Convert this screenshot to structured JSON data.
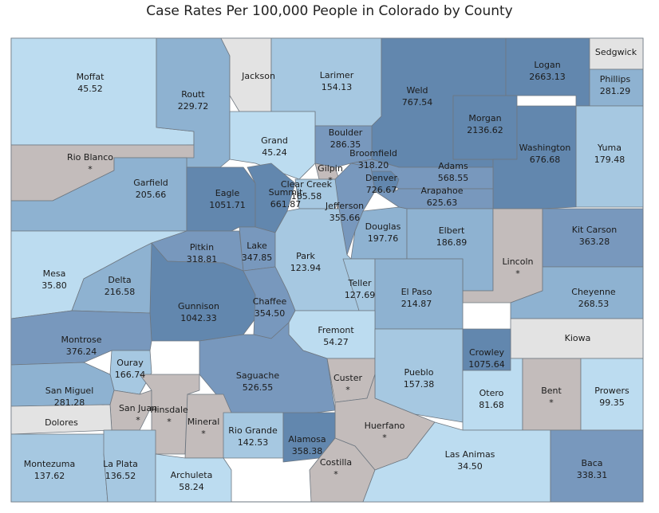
{
  "title": "Case Rates Per 100,000 People in Colorado by County",
  "colors": {
    "no_data": "#c3bcbb",
    "no_data_light": "#e3e3e3",
    "lightest": "#bcdcf0",
    "light": "#a6c8e1",
    "medium": "#8eb2d1",
    "dark": "#7898bd",
    "darkest": "#6287ae",
    "border": "#6e7780"
  },
  "counties": [
    {
      "key": "moffat",
      "name": "Moffat",
      "rate": "45.52",
      "shade": "lightest"
    },
    {
      "key": "routt",
      "name": "Routt",
      "rate": "229.72",
      "shade": "medium"
    },
    {
      "key": "jackson",
      "name": "Jackson",
      "rate": "",
      "shade": "no_data_light"
    },
    {
      "key": "larimer",
      "name": "Larimer",
      "rate": "154.13",
      "shade": "light"
    },
    {
      "key": "weld",
      "name": "Weld",
      "rate": "767.54",
      "shade": "darkest"
    },
    {
      "key": "logan",
      "name": "Logan",
      "rate": "2663.13",
      "shade": "darkest"
    },
    {
      "key": "sedgwick",
      "name": "Sedgwick",
      "rate": "",
      "shade": "no_data_light"
    },
    {
      "key": "phillips",
      "name": "Phillips",
      "rate": "281.29",
      "shade": "medium"
    },
    {
      "key": "morgan",
      "name": "Morgan",
      "rate": "2136.62",
      "shade": "darkest"
    },
    {
      "key": "yuma",
      "name": "Yuma",
      "rate": "179.48",
      "shade": "light"
    },
    {
      "key": "washington",
      "name": "Washington",
      "rate": "676.68",
      "shade": "darkest"
    },
    {
      "key": "rio-blanco",
      "name": "Rio Blanco",
      "rate": "*",
      "shade": "no_data"
    },
    {
      "key": "garfield",
      "name": "Garfield",
      "rate": "205.66",
      "shade": "medium"
    },
    {
      "key": "grand",
      "name": "Grand",
      "rate": "45.24",
      "shade": "lightest"
    },
    {
      "key": "boulder",
      "name": "Boulder",
      "rate": "286.35",
      "shade": "dark"
    },
    {
      "key": "broomfield",
      "name": "Broomfield",
      "rate": "318.20",
      "shade": "dark"
    },
    {
      "key": "gilpin",
      "name": "Gilpin",
      "rate": "*",
      "shade": "no_data"
    },
    {
      "key": "adams",
      "name": "Adams",
      "rate": "568.55",
      "shade": "dark"
    },
    {
      "key": "denver",
      "name": "Denver",
      "rate": "726.67",
      "shade": "darkest"
    },
    {
      "key": "arapahoe",
      "name": "Arapahoe",
      "rate": "625.63",
      "shade": "dark"
    },
    {
      "key": "eagle",
      "name": "Eagle",
      "rate": "1051.71",
      "shade": "darkest"
    },
    {
      "key": "summit",
      "name": "Summit",
      "rate": "661.87",
      "shade": "darkest"
    },
    {
      "key": "clear-creek",
      "name": "Clear Creek",
      "rate": "165.58",
      "shade": "light"
    },
    {
      "key": "jefferson",
      "name": "Jefferson",
      "rate": "355.66",
      "shade": "dark"
    },
    {
      "key": "douglas",
      "name": "Douglas",
      "rate": "197.76",
      "shade": "medium"
    },
    {
      "key": "elbert",
      "name": "Elbert",
      "rate": "186.89",
      "shade": "medium"
    },
    {
      "key": "lincoln",
      "name": "Lincoln",
      "rate": "*",
      "shade": "no_data"
    },
    {
      "key": "kit-carson",
      "name": "Kit Carson",
      "rate": "363.28",
      "shade": "dark"
    },
    {
      "key": "mesa",
      "name": "Mesa",
      "rate": "35.80",
      "shade": "lightest"
    },
    {
      "key": "delta",
      "name": "Delta",
      "rate": "216.58",
      "shade": "medium"
    },
    {
      "key": "pitkin",
      "name": "Pitkin",
      "rate": "318.81",
      "shade": "dark"
    },
    {
      "key": "lake",
      "name": "Lake",
      "rate": "347.85",
      "shade": "dark"
    },
    {
      "key": "park",
      "name": "Park",
      "rate": "123.94",
      "shade": "light"
    },
    {
      "key": "teller",
      "name": "Teller",
      "rate": "127.69",
      "shade": "light"
    },
    {
      "key": "el-paso",
      "name": "El Paso",
      "rate": "214.87",
      "shade": "medium"
    },
    {
      "key": "cheyenne",
      "name": "Cheyenne",
      "rate": "268.53",
      "shade": "medium"
    },
    {
      "key": "gunnison",
      "name": "Gunnison",
      "rate": "1042.33",
      "shade": "darkest"
    },
    {
      "key": "chaffee",
      "name": "Chaffee",
      "rate": "354.50",
      "shade": "dark"
    },
    {
      "key": "fremont",
      "name": "Fremont",
      "rate": "54.27",
      "shade": "lightest"
    },
    {
      "key": "kiowa",
      "name": "Kiowa",
      "rate": "",
      "shade": "no_data_light"
    },
    {
      "key": "montrose",
      "name": "Montrose",
      "rate": "376.24",
      "shade": "dark"
    },
    {
      "key": "crowley",
      "name": "Crowley",
      "rate": "1075.64",
      "shade": "darkest"
    },
    {
      "key": "ouray",
      "name": "Ouray",
      "rate": "166.74",
      "shade": "light"
    },
    {
      "key": "saguache",
      "name": "Saguache",
      "rate": "526.55",
      "shade": "dark"
    },
    {
      "key": "custer",
      "name": "Custer",
      "rate": "*",
      "shade": "no_data"
    },
    {
      "key": "pueblo",
      "name": "Pueblo",
      "rate": "157.38",
      "shade": "light"
    },
    {
      "key": "san-miguel",
      "name": "San Miguel",
      "rate": "281.28",
      "shade": "medium"
    },
    {
      "key": "otero",
      "name": "Otero",
      "rate": "81.68",
      "shade": "lightest"
    },
    {
      "key": "bent",
      "name": "Bent",
      "rate": "*",
      "shade": "no_data"
    },
    {
      "key": "prowers",
      "name": "Prowers",
      "rate": "99.35",
      "shade": "lightest"
    },
    {
      "key": "san-juan",
      "name": "San Juan",
      "rate": "*",
      "shade": "no_data"
    },
    {
      "key": "hinsdale",
      "name": "Hinsdale",
      "rate": "*",
      "shade": "no_data"
    },
    {
      "key": "mineral",
      "name": "Mineral",
      "rate": "*",
      "shade": "no_data"
    },
    {
      "key": "dolores",
      "name": "Dolores",
      "rate": "",
      "shade": "no_data_light"
    },
    {
      "key": "huerfano",
      "name": "Huerfano",
      "rate": "*",
      "shade": "no_data"
    },
    {
      "key": "rio-grande",
      "name": "Rio Grande",
      "rate": "142.53",
      "shade": "light"
    },
    {
      "key": "alamosa",
      "name": "Alamosa",
      "rate": "358.38",
      "shade": "darkest"
    },
    {
      "key": "montezuma",
      "name": "Montezuma",
      "rate": "137.62",
      "shade": "light"
    },
    {
      "key": "la-plata",
      "name": "La Plata",
      "rate": "136.52",
      "shade": "light"
    },
    {
      "key": "archuleta",
      "name": "Archuleta",
      "rate": "58.24",
      "shade": "lightest"
    },
    {
      "key": "costilla",
      "name": "Costilla",
      "rate": "*",
      "shade": "no_data"
    },
    {
      "key": "las-animas",
      "name": "Las Animas",
      "rate": "34.50",
      "shade": "lightest"
    },
    {
      "key": "baca",
      "name": "Baca",
      "rate": "338.31",
      "shade": "dark"
    }
  ]
}
